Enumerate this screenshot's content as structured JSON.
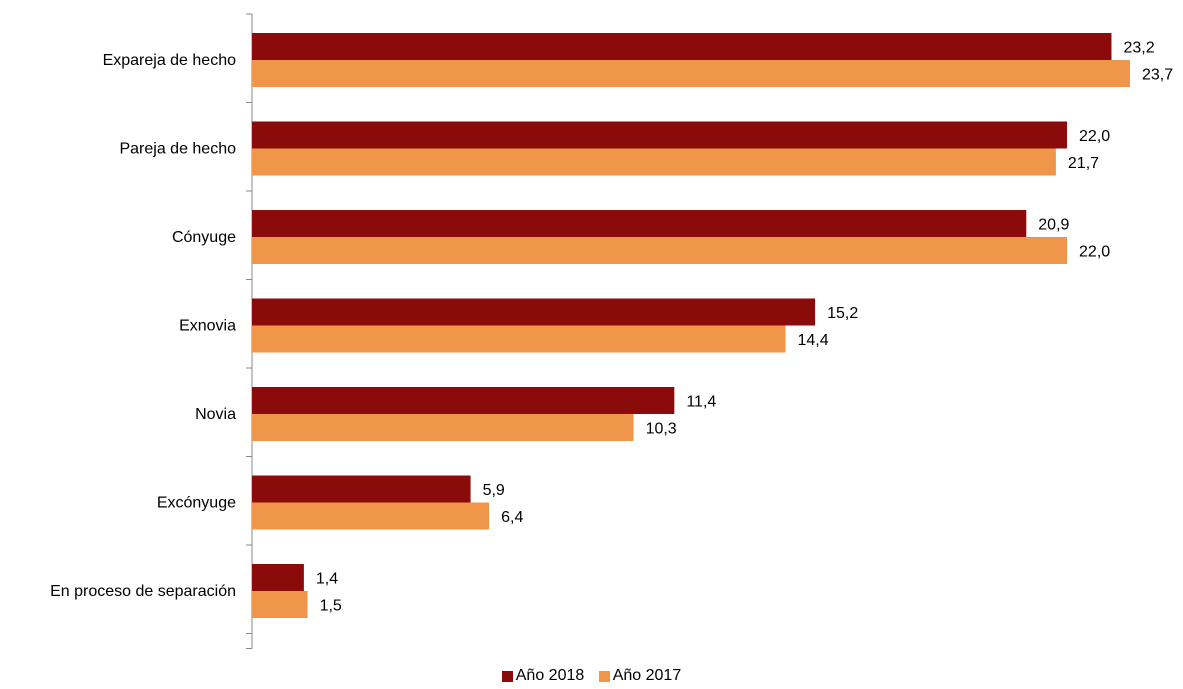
{
  "chart_data": {
    "type": "bar",
    "orientation": "horizontal",
    "categories": [
      "Expareja de hecho",
      "Pareja de hecho",
      "Cónyuge",
      "Exnovia",
      "Novia",
      "Excónyuge",
      "En proceso de separación"
    ],
    "series": [
      {
        "name": "Año 2018",
        "color": "#8B0A0A",
        "values": [
          23.2,
          22.0,
          20.9,
          15.2,
          11.4,
          5.9,
          1.4
        ],
        "labels": [
          "23,2",
          "22,0",
          "20,9",
          "15,2",
          "11,4",
          "5,9",
          "1,4"
        ]
      },
      {
        "name": "Año 2017",
        "color": "#F0964B",
        "values": [
          23.7,
          21.7,
          22.0,
          14.4,
          10.3,
          6.4,
          1.5
        ],
        "labels": [
          "23,7",
          "21,7",
          "22,0",
          "14,4",
          "10,3",
          "6,4",
          "1,5"
        ]
      }
    ],
    "xlim": [
      0,
      25
    ],
    "grid": false,
    "legend_position": "bottom"
  }
}
